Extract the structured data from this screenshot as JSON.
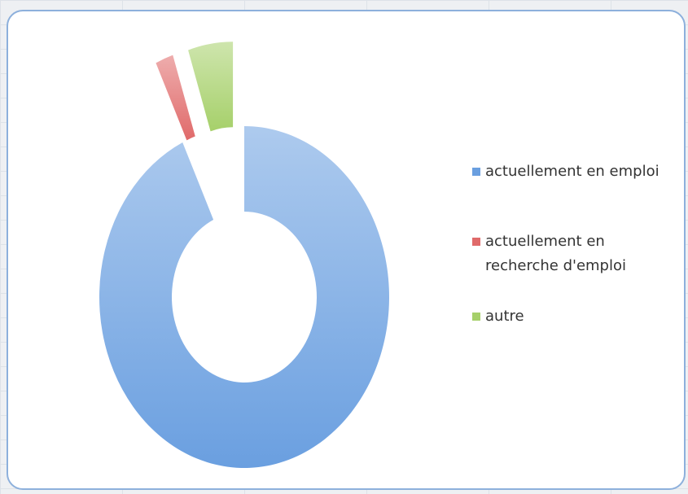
{
  "chart_data": {
    "type": "donut",
    "categories": [
      "actuellement en emploi",
      "actuellement en recherche d'emploi",
      "autre"
    ],
    "values": [
      93,
      2,
      5
    ],
    "colors": [
      "#6a9fe0",
      "#e06a6a",
      "#a6d06a"
    ]
  }
}
